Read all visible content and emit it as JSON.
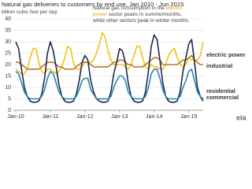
{
  "chart_data": {
    "type": "line",
    "title": "Natural gas deliveries to customers by end use, Jan 2010 - Jun 2015",
    "subtitle": "billion cubic feet per day",
    "annotation": [
      [
        {
          "text": "Natural gas consumption in the ",
          "highlight": false
        },
        {
          "text": "electric",
          "highlight": true
        }
      ],
      [
        {
          "text": "power",
          "highlight": true
        },
        {
          "text": " sector peaks in summermonths,",
          "highlight": false
        }
      ],
      [
        {
          "text": "while other sectors peak in winter months.",
          "highlight": false
        }
      ]
    ],
    "annotation_highlight_color": "#e8a317",
    "logo": "eia",
    "categories": [
      "Jan-10",
      null,
      null,
      null,
      null,
      null,
      null,
      null,
      null,
      null,
      null,
      null,
      "Jan-11",
      null,
      null,
      null,
      null,
      null,
      null,
      null,
      null,
      null,
      null,
      null,
      "Jan-12",
      null,
      null,
      null,
      null,
      null,
      null,
      null,
      null,
      null,
      null,
      null,
      "Jan-13",
      null,
      null,
      null,
      null,
      null,
      null,
      null,
      null,
      null,
      null,
      null,
      "Jan-14",
      null,
      null,
      null,
      null,
      null,
      null,
      null,
      null,
      null,
      null,
      null,
      "Jan-15",
      null,
      null,
      null,
      null,
      null
    ],
    "ylim": [
      0,
      40
    ],
    "yticks": [
      0,
      5,
      10,
      15,
      20,
      25,
      30,
      35,
      40
    ],
    "grid": true,
    "series": [
      {
        "name": "electric power",
        "color": "#f2c21b",
        "values": [
          18,
          17,
          16,
          16,
          18,
          23,
          27,
          27,
          21,
          17,
          16,
          18,
          18,
          17,
          16,
          17,
          19,
          23,
          28,
          27,
          21,
          18,
          18,
          19,
          21,
          21,
          21,
          22,
          25,
          29,
          34,
          32,
          26,
          22,
          20,
          20,
          20,
          20,
          19,
          18,
          20,
          24,
          28,
          28,
          23,
          19,
          18,
          20,
          19,
          19,
          18,
          18,
          20,
          24,
          26,
          27,
          23,
          20,
          19,
          20,
          23,
          22,
          22,
          22,
          24,
          30
        ]
      },
      {
        "name": "industrial",
        "color": "#b87a2b",
        "values": [
          21,
          21,
          20,
          19,
          18,
          18,
          18,
          18,
          18,
          19,
          20,
          21,
          21,
          21,
          20,
          19,
          19,
          18,
          18,
          18,
          18,
          19,
          20,
          21,
          21,
          21,
          20,
          19,
          19,
          19,
          19,
          19,
          19,
          20,
          21,
          21,
          22,
          22,
          21,
          20,
          20,
          19,
          19,
          19,
          19,
          20,
          21,
          22,
          23,
          23,
          22,
          20,
          20,
          20,
          20,
          20,
          20,
          21,
          22,
          22,
          23,
          24,
          22,
          21,
          20,
          20
        ]
      },
      {
        "name": "residential",
        "color": "#1b2b4b",
        "values": [
          30,
          27,
          18,
          10,
          6,
          4,
          3.5,
          3.5,
          4,
          7,
          14,
          25,
          30,
          26,
          19,
          11,
          6,
          4,
          3.5,
          3.5,
          4,
          7,
          13,
          21,
          24,
          22,
          13,
          8,
          5,
          4,
          3.5,
          3.5,
          4,
          8,
          16,
          21,
          27,
          26,
          21,
          12,
          6,
          4,
          3.5,
          3.5,
          4,
          8,
          17,
          28,
          33,
          31,
          22,
          12,
          6,
          4,
          3.5,
          3.5,
          4,
          8,
          17,
          23,
          29,
          31,
          21,
          10,
          6,
          4
        ]
      },
      {
        "name": "commercial",
        "color": "#2a86ad",
        "values": [
          17,
          16,
          12,
          8,
          6,
          5,
          5,
          5,
          5,
          6,
          9,
          14,
          17,
          16,
          12,
          8,
          6,
          5,
          5,
          5,
          5,
          6,
          9,
          13,
          14,
          14,
          9,
          7,
          5,
          5,
          5,
          5,
          5,
          6,
          10,
          13,
          15,
          15,
          13,
          8,
          6,
          5,
          5,
          5,
          5,
          6,
          10,
          16,
          18,
          18,
          14,
          9,
          6,
          5,
          5,
          5,
          5,
          6,
          10,
          13,
          17,
          18,
          13,
          8,
          6,
          5
        ]
      }
    ]
  }
}
